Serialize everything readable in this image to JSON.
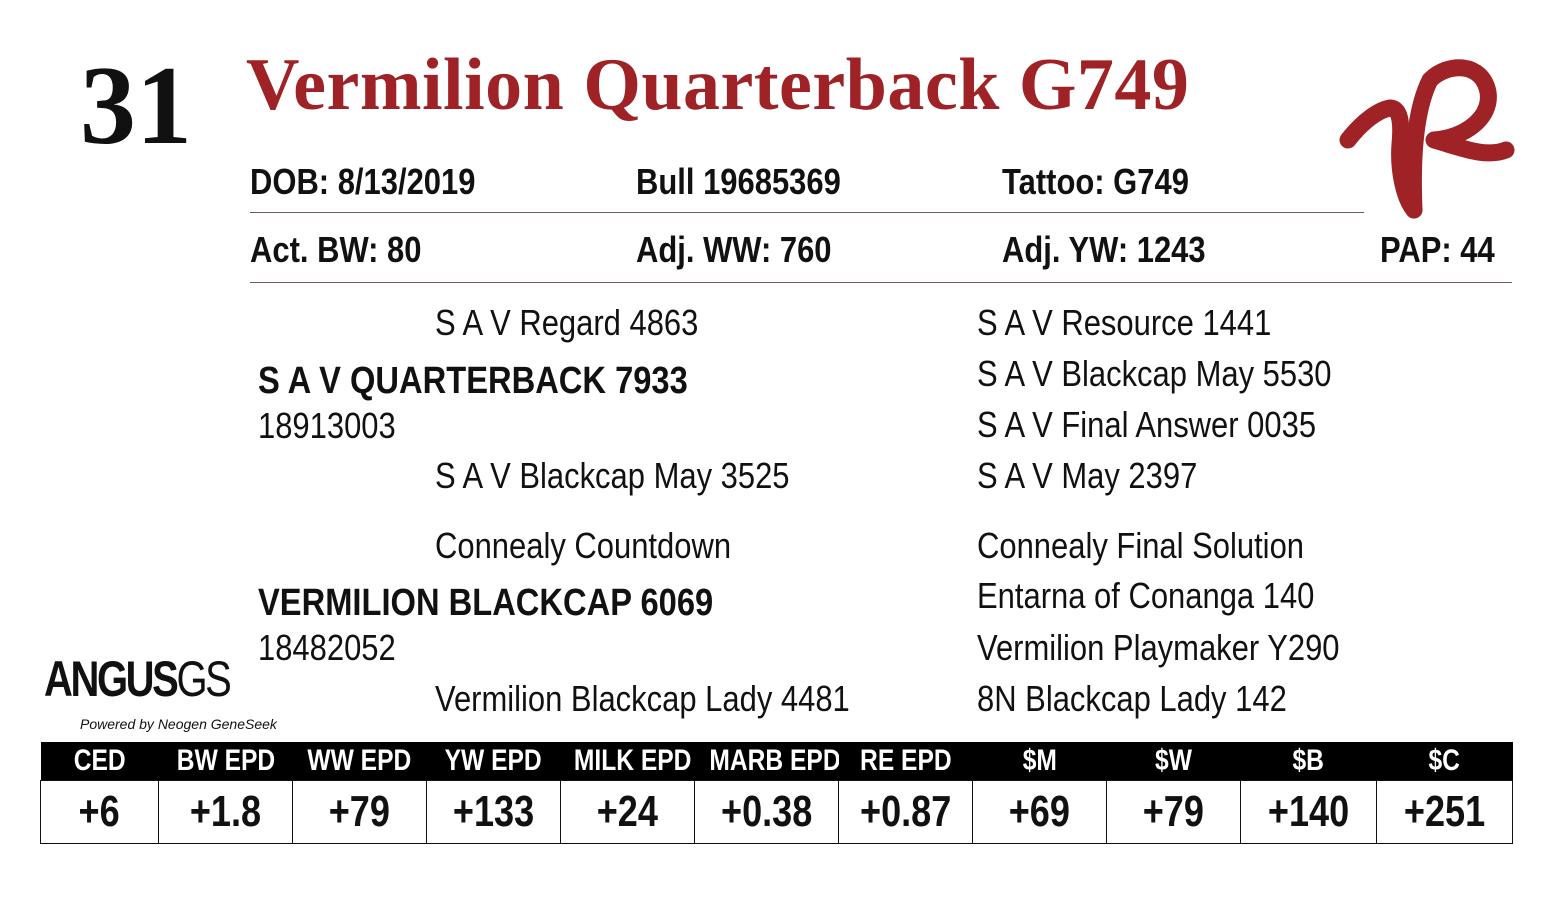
{
  "lot_number": "31",
  "title": "Vermilion Quarterback G749",
  "info_row1": {
    "dob": "DOB:  8/13/2019",
    "registration": "Bull   19685369",
    "tattoo": "Tattoo:  G749"
  },
  "info_row2": {
    "act_bw": "Act. BW: 80",
    "adj_ww": "Adj. WW: 760",
    "adj_yw": "Adj. YW: 1243",
    "pap": "PAP: 44"
  },
  "pedigree": {
    "sire_sire": "S A V Regard 4863",
    "sire": "S A V QUARTERBACK 7933",
    "sire_reg": "18913003",
    "sire_dam": "S A V Blackcap May 3525",
    "dam_sire": "Connealy Countdown",
    "dam": "VERMILION BLACKCAP 6069",
    "dam_reg": "18482052",
    "dam_dam": "Vermilion Blackcap Lady 4481",
    "right": [
      "S A V Resource 1441",
      "S A V Blackcap May 5530",
      "S A V Final Answer 0035",
      "S A V May 2397",
      "Connealy Final Solution",
      "Entarna of Conanga 140",
      "Vermilion Playmaker Y290",
      "8N Blackcap Lady 142"
    ]
  },
  "genomic_badge": {
    "word": "ANGUS",
    "suffix": "GS",
    "tagline": "Powered by Neogen GeneSeek"
  },
  "epd_table": {
    "headers": [
      "CED",
      "BW EPD",
      "WW EPD",
      "YW EPD",
      "MILK EPD",
      "MARB EPD",
      "RE EPD",
      "$M",
      "$W",
      "$B",
      "$C"
    ],
    "values": [
      "+6",
      "+1.8",
      "+79",
      "+133",
      "+24",
      "+0.38",
      "+0.87",
      "+69",
      "+79",
      "+140",
      "+251"
    ]
  },
  "colors": {
    "title": "#9e2226",
    "logo": "#9e2226",
    "header_bg": "#000000"
  }
}
